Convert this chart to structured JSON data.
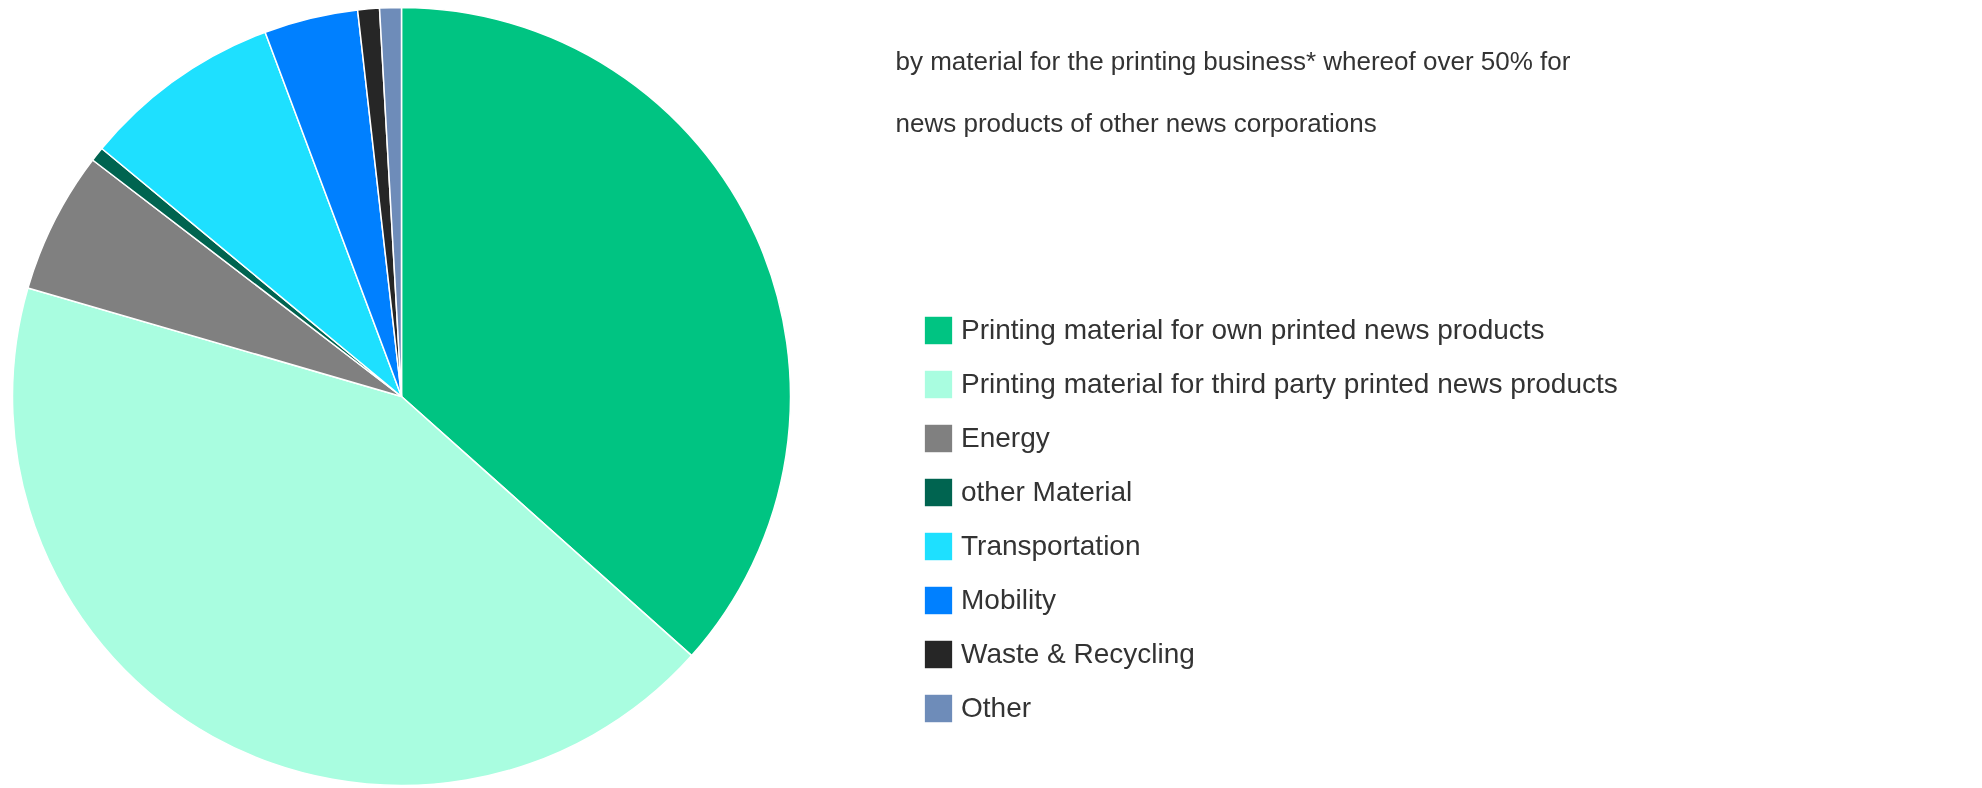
{
  "chart_data": {
    "type": "pie",
    "categories": [
      "Printing material for own printed news products",
      "Printing material for third party printed news products",
      "Energy",
      "other Material",
      "Transportation",
      "Mobility",
      "Waste & Recycling",
      "Other"
    ],
    "values": [
      36.6,
      42.9,
      5.9,
      0.6,
      8.3,
      3.9,
      0.9,
      0.9
    ],
    "colors": [
      "#00c482",
      "#a9fde0",
      "#808080",
      "#006450",
      "#1ee0ff",
      "#0080ff",
      "#262626",
      "#6e8cb9"
    ],
    "annotations": [
      "by material for the printing business* whereof over 50% for news products of other news corporations"
    ],
    "legend": "right"
  }
}
